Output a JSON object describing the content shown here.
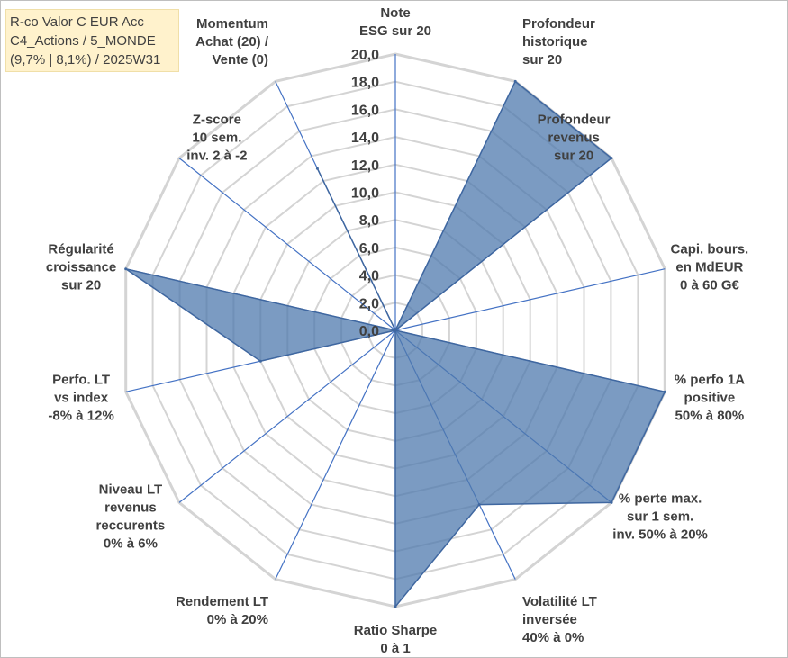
{
  "title_lines": [
    "R-co Valor C EUR Acc",
    "C4_Actions / 5_MONDE",
    "(9,7% | 8,1%) / 2025W31"
  ],
  "chart_data": {
    "type": "radar",
    "rmin": 0,
    "rmax": 20,
    "tick_labels": [
      "0,0",
      "2,0",
      "4,0",
      "6,0",
      "8,0",
      "10,0",
      "12,0",
      "14,0",
      "16,0",
      "18,0",
      "20,0"
    ],
    "axes": [
      {
        "label": [
          "Note",
          "ESG sur 20"
        ],
        "value": 0
      },
      {
        "label": [
          "Profondeur",
          "historique",
          "sur 20"
        ],
        "value": 20
      },
      {
        "label": [
          "Profondeur",
          "revenus",
          "sur 20"
        ],
        "value": 20
      },
      {
        "label": [
          "Capi. bours.",
          "en MdEUR",
          "0 à 60 G€"
        ],
        "value": 0
      },
      {
        "label": [
          "% perfo 1A",
          "positive",
          "50% à 80%"
        ],
        "value": 20
      },
      {
        "label": [
          "% perte max.",
          "sur 1 sem.",
          "inv. 50% à 20%"
        ],
        "value": 20
      },
      {
        "label": [
          "Volatilité LT",
          "inversée",
          "40% à 0%"
        ],
        "value": 14
      },
      {
        "label": [
          "Ratio Sharpe",
          "0 à 1"
        ],
        "value": 20
      },
      {
        "label": [
          "Rendement LT",
          "0% à 20%"
        ],
        "value": 0
      },
      {
        "label": [
          "Niveau LT",
          "revenus",
          "reccurents",
          "0% à 6%"
        ],
        "value": 0
      },
      {
        "label": [
          "Perfo. LT",
          "vs index",
          "-8% à 12%"
        ],
        "value": 10
      },
      {
        "label": [
          "Régularité",
          "croissance",
          "sur 20"
        ],
        "value": 20
      },
      {
        "label": [
          "Z-score",
          "10 sem.",
          "inv. 2 à -2"
        ],
        "value": 0
      },
      {
        "label": [
          "Momentum",
          "Achat (20) /",
          "Vente (0)"
        ],
        "value": 13
      }
    ],
    "series": [
      {
        "values": [
          0,
          20,
          20,
          0,
          20,
          20,
          14,
          20,
          0,
          0,
          10,
          20,
          0,
          13
        ]
      }
    ],
    "colors": {
      "fill": "#4f79ad",
      "fill_opacity": "0.75",
      "stroke": "#3f67a0",
      "grid": "#d4d4d4",
      "spoke": "#4472c4",
      "text": "#404040"
    }
  }
}
